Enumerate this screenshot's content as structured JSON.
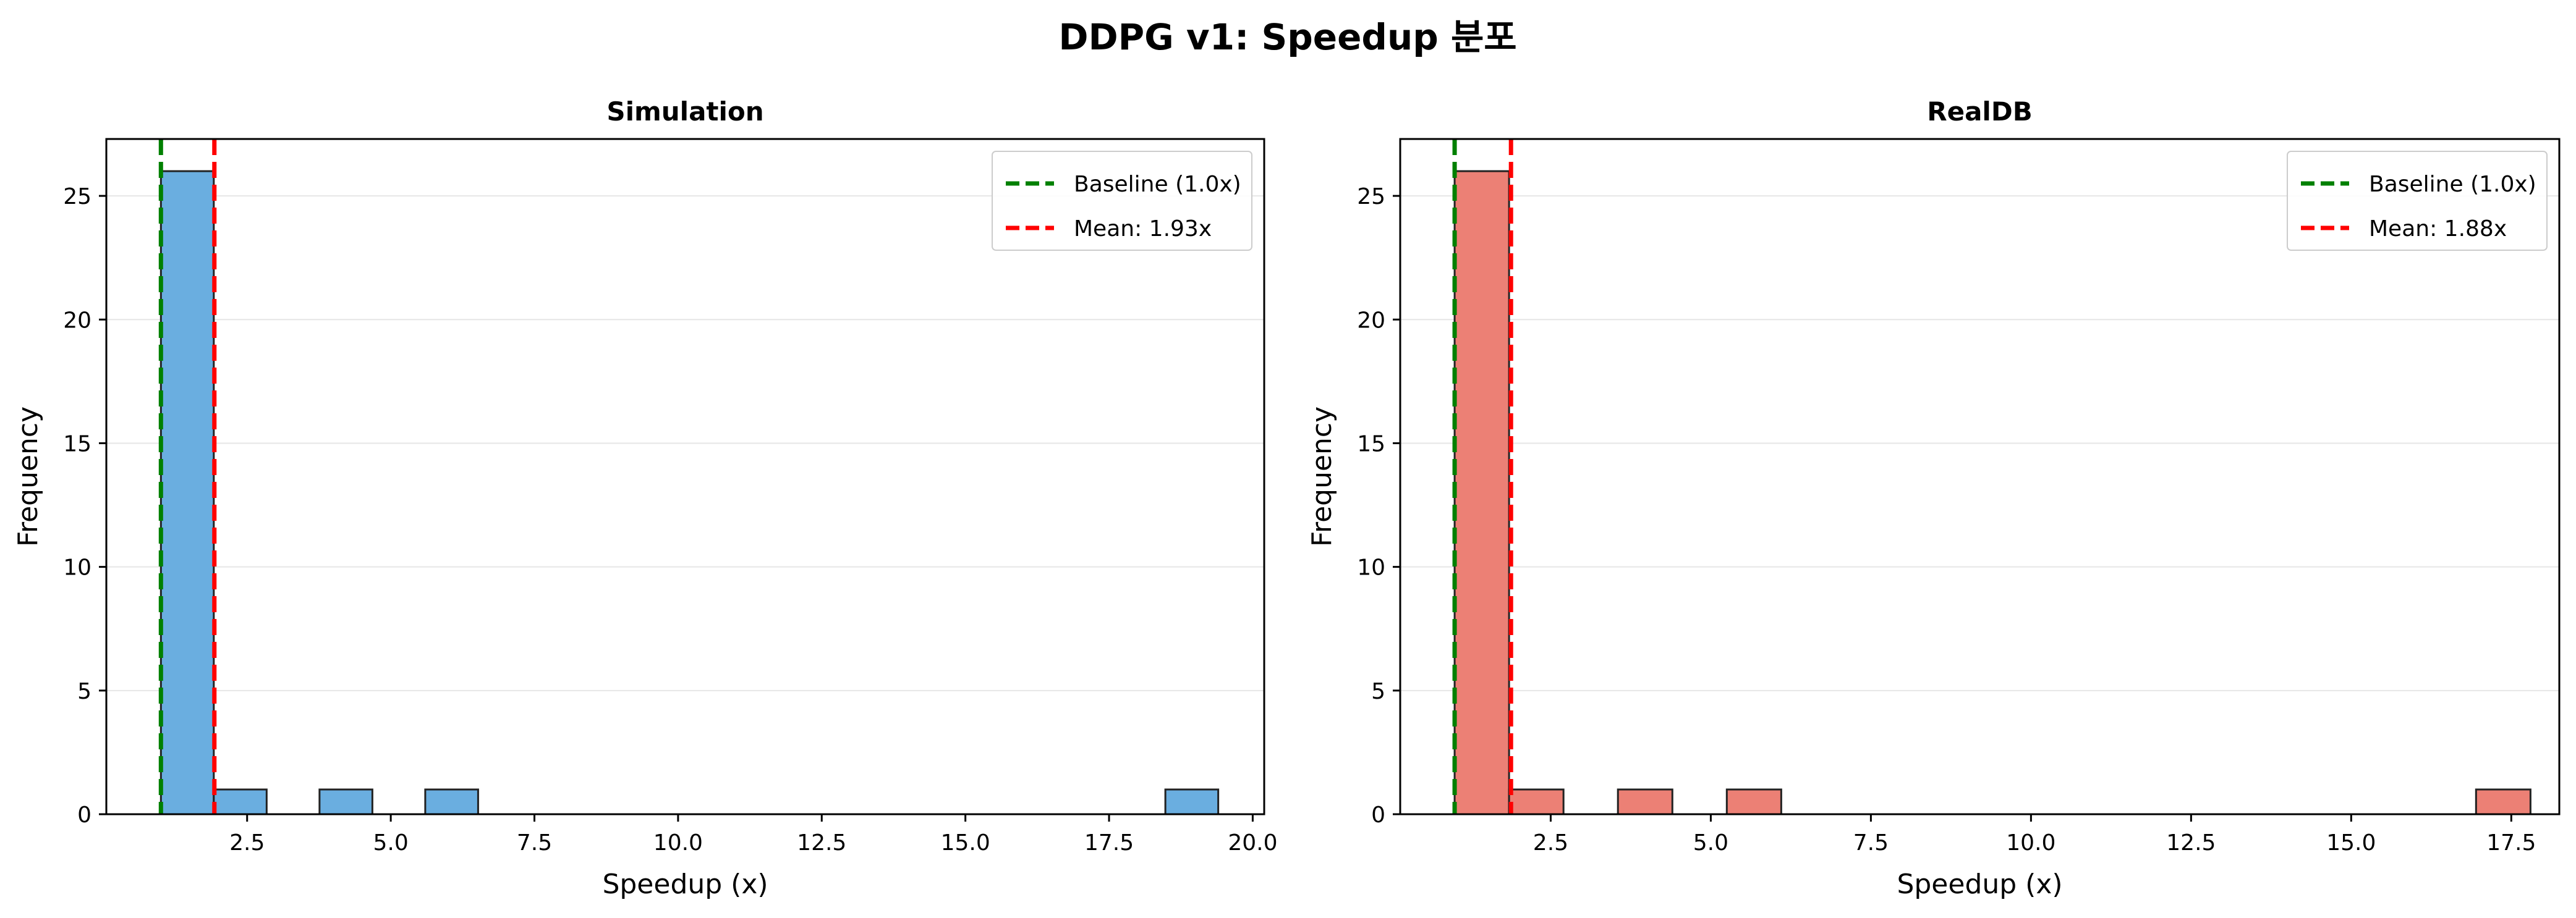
{
  "figure": {
    "title": "DDPG v1: Speedup 분포"
  },
  "colors": {
    "simulation_bar": "#6aaee0",
    "realdb_bar": "#ec8075",
    "bar_edge": "#222222",
    "baseline_line": "#008000",
    "mean_line": "#ff0000",
    "grid": "#e6e6e6"
  },
  "chart_data": [
    {
      "type": "bar",
      "title": "Simulation",
      "xlabel": "Speedup (x)",
      "ylabel": "Frequency",
      "xlim": [
        0.05,
        20.2
      ],
      "ylim": [
        0,
        27.3
      ],
      "xticks": [
        "2.5",
        "5.0",
        "7.5",
        "10.0",
        "12.5",
        "15.0",
        "17.5",
        "20.0"
      ],
      "xtick_values": [
        2.5,
        5.0,
        7.5,
        10.0,
        12.5,
        15.0,
        17.5,
        20.0
      ],
      "yticks": [
        "0",
        "5",
        "10",
        "15",
        "20",
        "25"
      ],
      "ytick_values": [
        0,
        5,
        10,
        15,
        20,
        25
      ],
      "grid": "y",
      "legend_position": "top-right",
      "bins": [
        {
          "x0": 1.0,
          "x1": 1.92,
          "value": 26
        },
        {
          "x0": 1.92,
          "x1": 2.84,
          "value": 1
        },
        {
          "x0": 3.76,
          "x1": 4.68,
          "value": 1
        },
        {
          "x0": 5.6,
          "x1": 6.52,
          "value": 1
        },
        {
          "x0": 18.48,
          "x1": 19.4,
          "value": 1
        }
      ],
      "lines": [
        {
          "label": "Baseline (1.0x)",
          "x": 1.0,
          "color": "#008000"
        },
        {
          "label": "Mean: 1.93x",
          "x": 1.93,
          "color": "#ff0000"
        }
      ]
    },
    {
      "type": "bar",
      "title": "RealDB",
      "xlabel": "Speedup (x)",
      "ylabel": "Frequency",
      "xlim": [
        0.15,
        18.25
      ],
      "ylim": [
        0,
        27.3
      ],
      "xticks": [
        "2.5",
        "5.0",
        "7.5",
        "10.0",
        "12.5",
        "15.0",
        "17.5"
      ],
      "xtick_values": [
        2.5,
        5.0,
        7.5,
        10.0,
        12.5,
        15.0,
        17.5
      ],
      "yticks": [
        "0",
        "5",
        "10",
        "15",
        "20",
        "25"
      ],
      "ytick_values": [
        0,
        5,
        10,
        15,
        20,
        25
      ],
      "grid": "y",
      "legend_position": "top-right",
      "bins": [
        {
          "x0": 1.0,
          "x1": 1.85,
          "value": 26
        },
        {
          "x0": 1.85,
          "x1": 2.7,
          "value": 1
        },
        {
          "x0": 3.55,
          "x1": 4.4,
          "value": 1
        },
        {
          "x0": 5.25,
          "x1": 6.1,
          "value": 1
        },
        {
          "x0": 16.95,
          "x1": 17.8,
          "value": 1
        }
      ],
      "lines": [
        {
          "label": "Baseline (1.0x)",
          "x": 1.0,
          "color": "#008000"
        },
        {
          "label": "Mean: 1.88x",
          "x": 1.88,
          "color": "#ff0000"
        }
      ]
    }
  ]
}
